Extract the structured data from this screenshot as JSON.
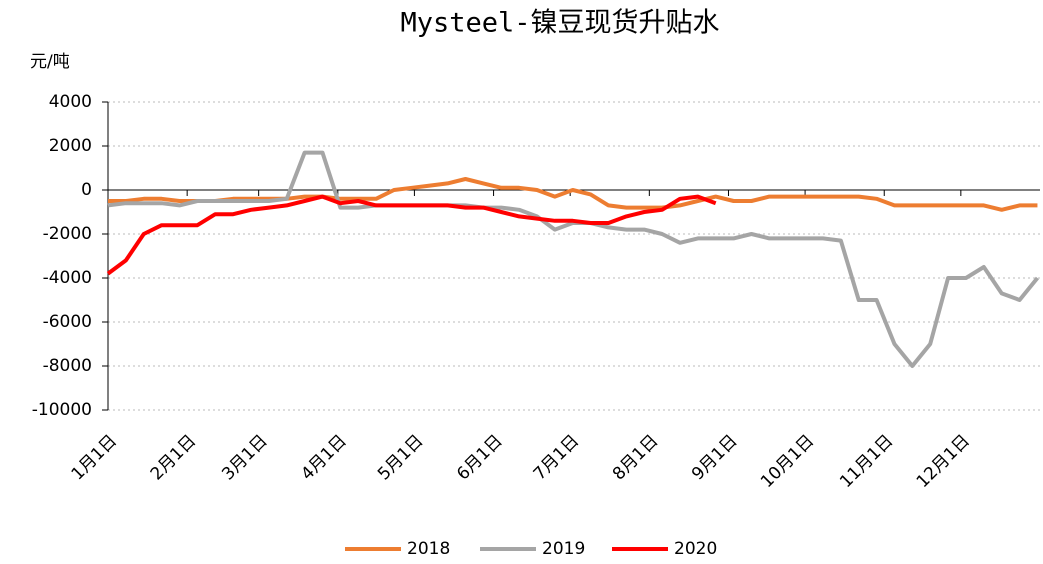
{
  "chart_data": {
    "type": "line",
    "title": "Mysteel-镍豆现货升贴水",
    "y_label": "元/吨",
    "x": [
      0,
      7,
      14,
      21,
      28,
      35,
      42,
      49,
      56,
      63,
      70,
      77,
      84,
      91,
      98,
      105,
      112,
      119,
      126,
      133,
      140,
      147,
      154,
      161,
      168,
      175,
      182,
      189,
      196,
      203,
      210,
      217,
      224,
      231,
      238,
      245,
      252,
      259,
      266,
      273,
      280,
      287,
      294,
      301,
      308,
      315,
      322,
      329,
      336,
      343,
      350,
      357,
      364
    ],
    "xlim": [
      0,
      365
    ],
    "xticks": [
      {
        "value": 0,
        "label": "1月1日"
      },
      {
        "value": 31,
        "label": "2月1日"
      },
      {
        "value": 59,
        "label": "3月1日"
      },
      {
        "value": 90,
        "label": "4月1日"
      },
      {
        "value": 120,
        "label": "5月1日"
      },
      {
        "value": 151,
        "label": "6月1日"
      },
      {
        "value": 181,
        "label": "7月1日"
      },
      {
        "value": 212,
        "label": "8月1日"
      },
      {
        "value": 243,
        "label": "9月1日"
      },
      {
        "value": 273,
        "label": "10月1日"
      },
      {
        "value": 304,
        "label": "11月1日"
      },
      {
        "value": 334,
        "label": "12月1日"
      }
    ],
    "ylim": [
      -10000,
      4000
    ],
    "yticks": [
      -10000,
      -8000,
      -6000,
      -4000,
      -2000,
      0,
      2000,
      4000
    ],
    "grid": true,
    "legend": "bottom",
    "series": [
      {
        "name": "2018",
        "color": "#ed7d31",
        "values": [
          -500,
          -500,
          -400,
          -400,
          -500,
          -500,
          -500,
          -400,
          -400,
          -400,
          -400,
          -300,
          -300,
          -400,
          -400,
          -400,
          0,
          100,
          200,
          300,
          500,
          300,
          100,
          100,
          0,
          -300,
          0,
          -200,
          -700,
          -800,
          -800,
          -800,
          -700,
          -500,
          -300,
          -500,
          -500,
          -300,
          -300,
          -300,
          -300,
          -300,
          -300,
          -400,
          -700,
          -700,
          -700,
          -700,
          -700,
          -700,
          -900,
          -700,
          -700
        ]
      },
      {
        "name": "2019",
        "color": "#a5a5a5",
        "values": [
          -700,
          -600,
          -600,
          -600,
          -700,
          -500,
          -500,
          -500,
          -500,
          -500,
          -400,
          1700,
          1700,
          -800,
          -800,
          -700,
          -700,
          -700,
          -700,
          -700,
          -700,
          -800,
          -800,
          -900,
          -1200,
          -1800,
          -1500,
          -1500,
          -1700,
          -1800,
          -1800,
          -2000,
          -2400,
          -2200,
          -2200,
          -2200,
          -2000,
          -2200,
          -2200,
          -2200,
          -2200,
          -2300,
          -5000,
          -5000,
          -7000,
          -8000,
          -7000,
          -4000,
          -4000,
          -3500,
          -4700,
          -5000,
          -4000
        ]
      },
      {
        "name": "2020",
        "color": "#ff0000",
        "values": [
          -3800,
          -3200,
          -2000,
          -1600,
          -1600,
          -1600,
          -1100,
          -1100,
          -900,
          -800,
          -700,
          -500,
          -300,
          -600,
          -500,
          -700,
          -700,
          -700,
          -700,
          -700,
          -800,
          -800,
          -1000,
          -1200,
          -1300,
          -1400,
          -1400,
          -1500,
          -1500,
          -1200,
          -1000,
          -900,
          -400,
          -300,
          -600,
          null,
          null,
          null,
          null,
          null,
          null,
          null,
          null,
          null,
          null,
          null,
          null,
          null,
          null,
          null,
          null,
          null,
          null
        ]
      }
    ]
  }
}
